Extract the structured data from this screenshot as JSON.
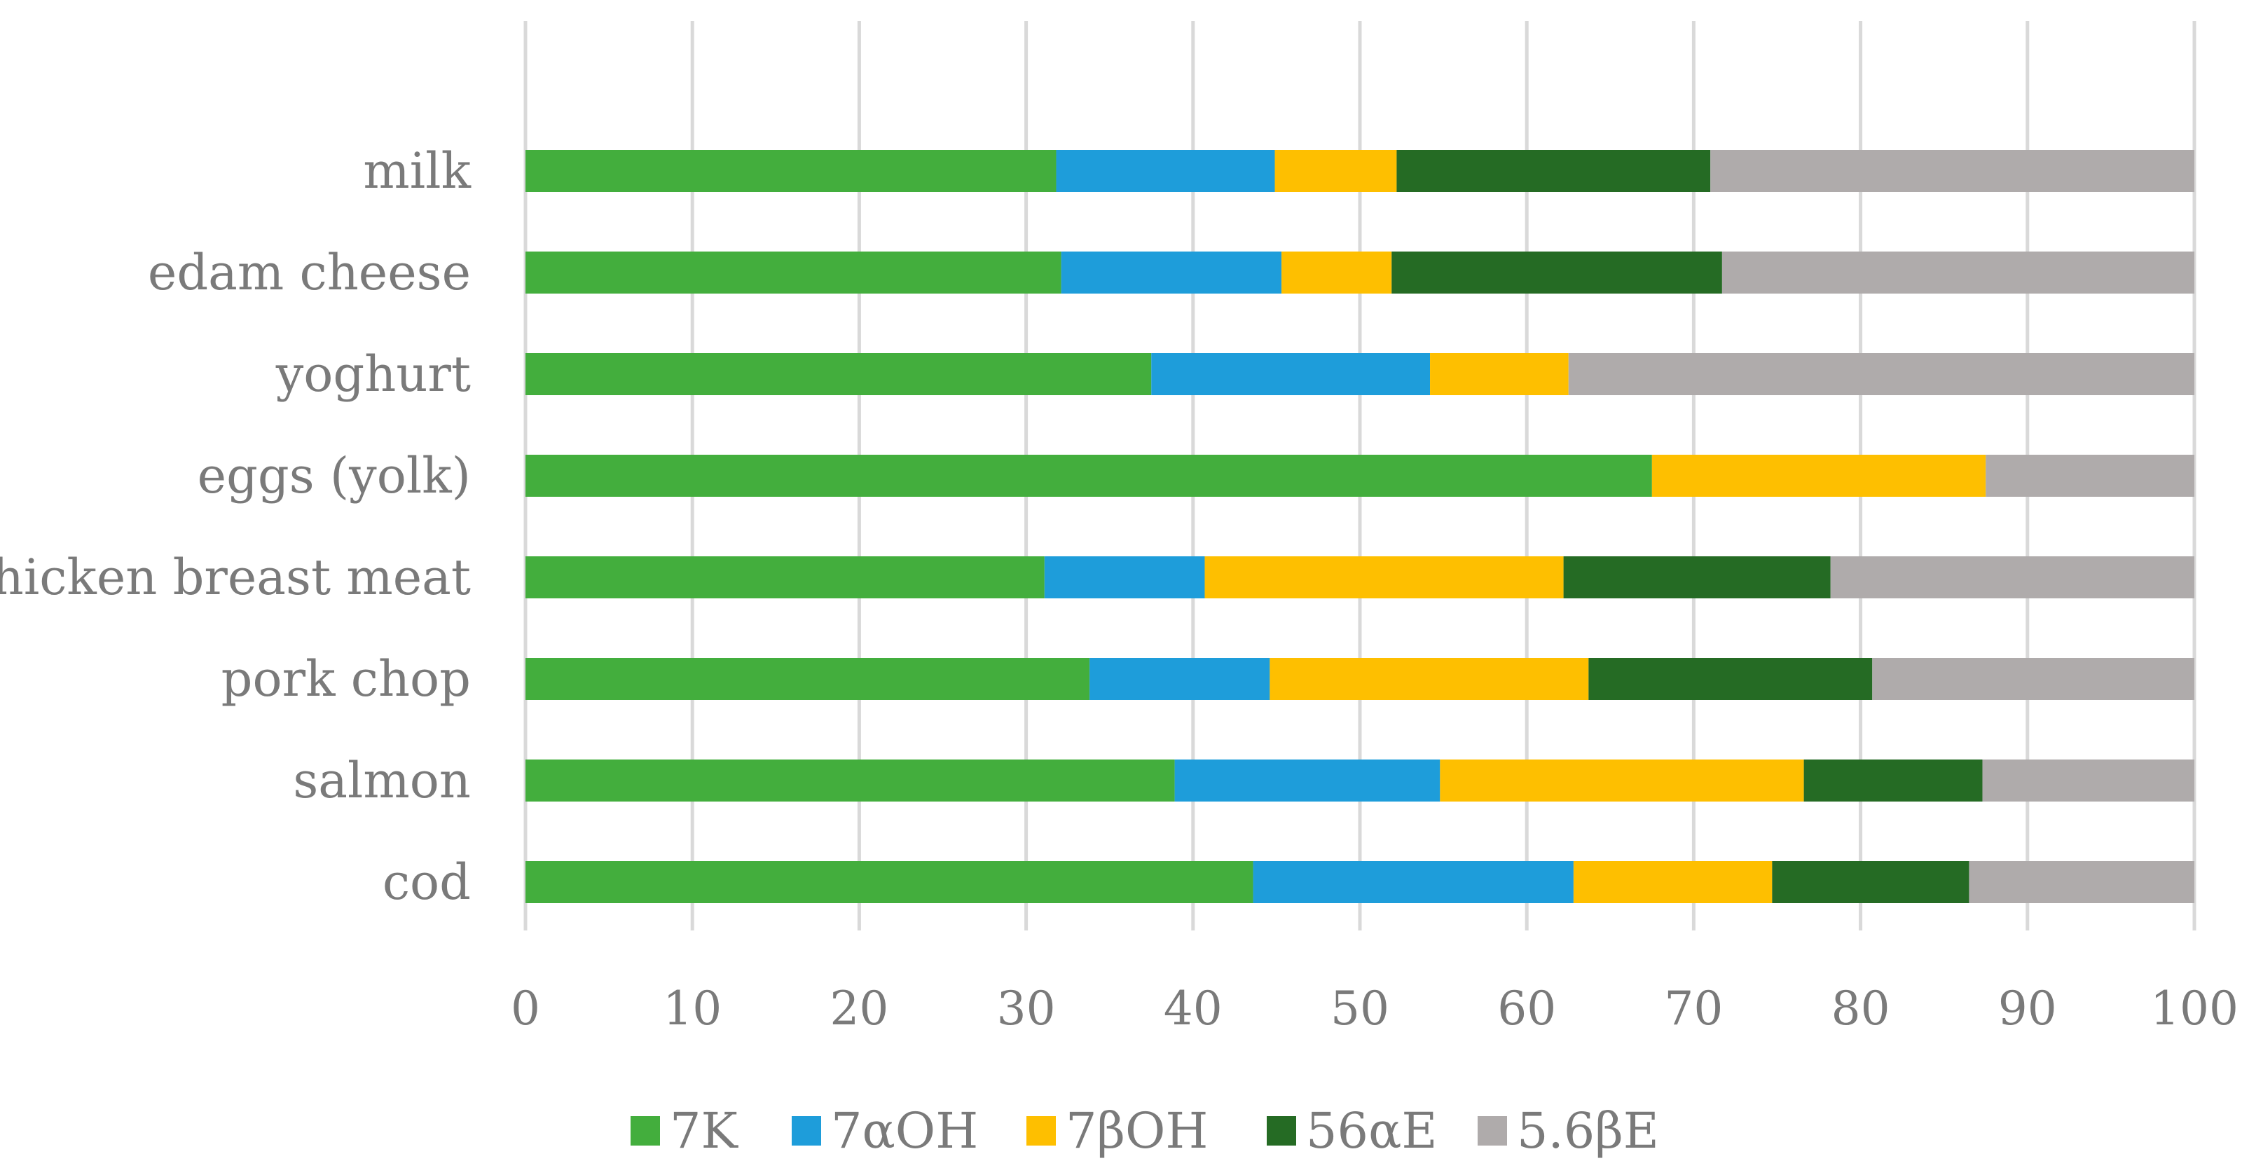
{
  "chart_data": {
    "type": "bar",
    "orientation": "horizontal",
    "stacked": true,
    "title": "",
    "xlabel": "",
    "ylabel": "",
    "xlim": [
      0,
      100
    ],
    "xticks": [
      0,
      10,
      20,
      30,
      40,
      50,
      60,
      70,
      80,
      90,
      100
    ],
    "grid": "vertical",
    "legend_position": "bottom",
    "categories": [
      "milk",
      "edam cheese",
      "yoghurt",
      "eggs (yolk)",
      "chicken breast meat",
      "pork chop",
      "salmon",
      "cod"
    ],
    "series": [
      {
        "name": "7K",
        "color": "#43AE3D",
        "values": [
          31.8,
          32.1,
          37.5,
          67.5,
          31.1,
          33.8,
          38.9,
          43.6
        ]
      },
      {
        "name": "7αOH",
        "color": "#1E9DDA",
        "values": [
          13.1,
          13.2,
          16.7,
          0,
          9.6,
          10.8,
          15.9,
          19.2
        ]
      },
      {
        "name": "7βOH",
        "color": "#FEBF00",
        "values": [
          7.3,
          6.6,
          8.3,
          20.0,
          21.5,
          19.1,
          21.8,
          11.9
        ]
      },
      {
        "name": "56αE",
        "color": "#256B24",
        "values": [
          18.8,
          19.8,
          0,
          0,
          16.0,
          17.0,
          10.7,
          11.8
        ]
      },
      {
        "name": "5.6βE",
        "color": "#AFABAB",
        "values": [
          29.0,
          28.3,
          37.5,
          12.5,
          21.8,
          19.3,
          12.7,
          13.5
        ]
      }
    ]
  }
}
